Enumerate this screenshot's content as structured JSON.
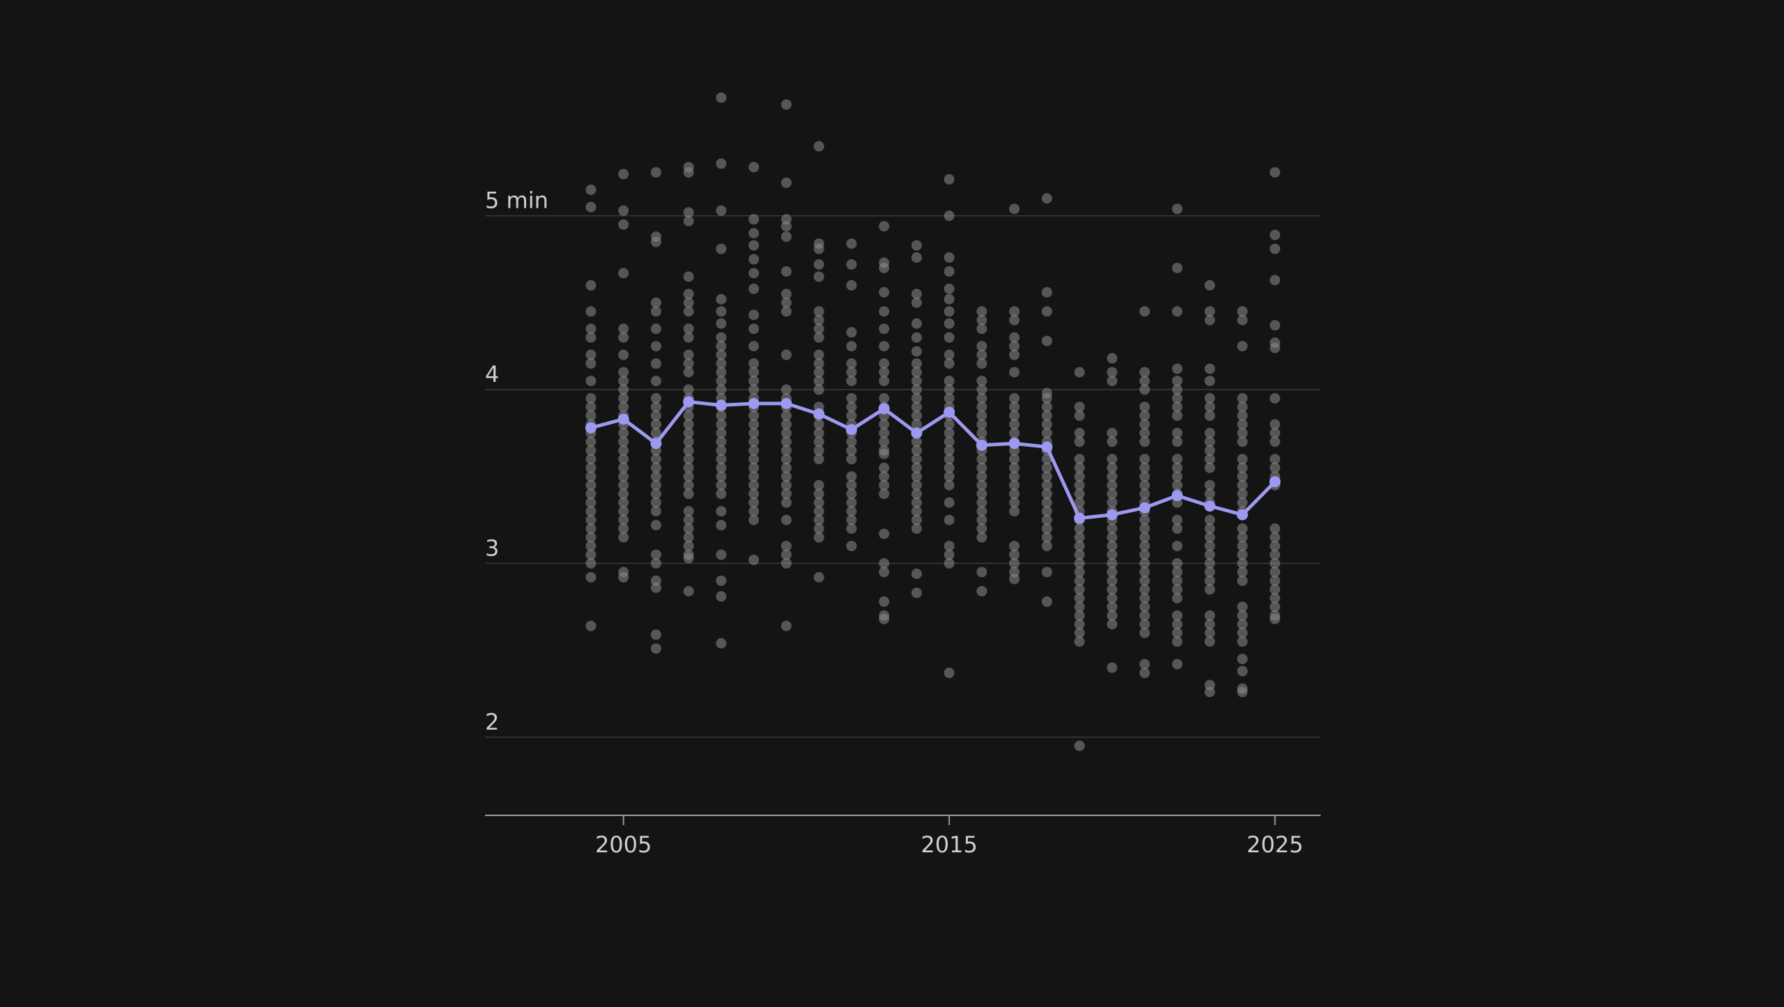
{
  "chart_data": {
    "type": "scatter",
    "title": "",
    "xlabel": "",
    "ylabel": "",
    "xlim": [
      2000.75,
      2026.4
    ],
    "ylim": [
      1.55,
      5.5
    ],
    "y_ticks": [
      {
        "value": 5,
        "label": "5 min"
      },
      {
        "value": 4,
        "label": "4"
      },
      {
        "value": 3,
        "label": "3"
      },
      {
        "value": 2,
        "label": "2"
      }
    ],
    "x_ticks": [
      {
        "value": 2005,
        "label": "2005"
      },
      {
        "value": 2015,
        "label": "2015"
      },
      {
        "value": 2025,
        "label": "2025"
      }
    ],
    "grid": true,
    "colors": {
      "background": "#141414",
      "points": "#8c8c8c",
      "average_line": "#9d99f0",
      "grid": "#3a3a3a",
      "axis": "#9a9a9a",
      "tick_text": "#cfcfcf"
    },
    "series": [
      {
        "values_by_year": [
          {
            "x": 2004,
            "y": [
              5.15,
              5.05,
              4.6,
              4.45,
              4.35,
              4.3,
              4.2,
              4.15,
              4.05,
              3.95,
              3.9,
              3.85,
              3.8,
              3.75,
              3.7,
              3.65,
              3.6,
              3.55,
              3.5,
              3.45,
              3.4,
              3.35,
              3.3,
              3.25,
              3.2,
              3.15,
              3.1,
              3.05,
              3.0,
              2.92,
              2.64
            ]
          },
          {
            "x": 2005,
            "y": [
              5.24,
              5.03,
              4.95,
              4.67,
              4.35,
              4.3,
              4.2,
              4.1,
              4.05,
              4.0,
              3.95,
              3.9,
              3.85,
              3.8,
              3.75,
              3.7,
              3.65,
              3.6,
              3.55,
              3.5,
              3.45,
              3.4,
              3.35,
              3.3,
              3.25,
              3.2,
              3.15,
              2.95,
              2.92
            ]
          },
          {
            "x": 2006,
            "y": [
              5.25,
              4.88,
              4.85,
              4.5,
              4.45,
              4.35,
              4.25,
              4.15,
              4.05,
              3.95,
              3.9,
              3.85,
              3.8,
              3.75,
              3.7,
              3.65,
              3.6,
              3.55,
              3.5,
              3.45,
              3.4,
              3.35,
              3.3,
              3.22,
              3.05,
              3.0,
              2.9,
              2.86,
              2.59,
              2.51
            ]
          },
          {
            "x": 2007,
            "y": [
              5.28,
              5.25,
              5.02,
              4.97,
              4.65,
              4.55,
              4.5,
              4.45,
              4.35,
              4.3,
              4.2,
              4.15,
              4.1,
              4.0,
              3.95,
              3.9,
              3.85,
              3.8,
              3.75,
              3.7,
              3.65,
              3.6,
              3.55,
              3.5,
              3.45,
              3.4,
              3.3,
              3.25,
              3.2,
              3.15,
              3.1,
              3.05,
              3.03,
              2.84
            ]
          },
          {
            "x": 2008,
            "y": [
              5.68,
              5.3,
              5.03,
              4.81,
              4.52,
              4.45,
              4.38,
              4.3,
              4.25,
              4.2,
              4.15,
              4.1,
              4.05,
              4.0,
              3.95,
              3.9,
              3.85,
              3.8,
              3.75,
              3.7,
              3.65,
              3.6,
              3.55,
              3.5,
              3.45,
              3.4,
              3.3,
              3.22,
              3.05,
              2.9,
              2.81,
              2.54
            ]
          },
          {
            "x": 2009,
            "y": [
              5.28,
              4.98,
              4.9,
              4.83,
              4.75,
              4.67,
              4.58,
              4.43,
              4.35,
              4.25,
              4.15,
              4.1,
              4.05,
              4.0,
              3.95,
              3.9,
              3.85,
              3.8,
              3.75,
              3.7,
              3.65,
              3.6,
              3.55,
              3.5,
              3.45,
              3.4,
              3.35,
              3.3,
              3.25,
              3.02
            ]
          },
          {
            "x": 2010,
            "y": [
              5.64,
              5.19,
              4.98,
              4.94,
              4.88,
              4.68,
              4.55,
              4.5,
              4.45,
              4.2,
              4.0,
              3.95,
              3.9,
              3.85,
              3.8,
              3.75,
              3.7,
              3.65,
              3.6,
              3.55,
              3.5,
              3.45,
              3.4,
              3.35,
              3.25,
              3.1,
              3.05,
              3.0,
              2.64
            ]
          },
          {
            "x": 2011,
            "y": [
              5.4,
              4.84,
              4.81,
              4.72,
              4.65,
              4.45,
              4.4,
              4.35,
              4.3,
              4.2,
              4.15,
              4.1,
              4.05,
              4.0,
              3.9,
              3.85,
              3.8,
              3.75,
              3.7,
              3.65,
              3.6,
              3.45,
              3.4,
              3.35,
              3.3,
              3.25,
              3.2,
              3.15,
              2.92
            ]
          },
          {
            "x": 2012,
            "y": [
              4.84,
              4.72,
              4.6,
              4.33,
              4.25,
              4.15,
              4.1,
              4.05,
              3.95,
              3.9,
              3.85,
              3.8,
              3.75,
              3.7,
              3.65,
              3.6,
              3.5,
              3.45,
              3.4,
              3.35,
              3.3,
              3.25,
              3.2,
              3.1
            ]
          },
          {
            "x": 2013,
            "y": [
              4.94,
              4.73,
              4.7,
              4.56,
              4.45,
              4.35,
              4.25,
              4.15,
              4.1,
              4.05,
              3.95,
              3.9,
              3.85,
              3.8,
              3.75,
              3.7,
              3.65,
              3.63,
              3.55,
              3.5,
              3.45,
              3.4,
              3.17,
              3.0,
              2.95,
              2.78,
              2.7,
              2.68
            ]
          },
          {
            "x": 2014,
            "y": [
              4.83,
              4.76,
              4.55,
              4.5,
              4.38,
              4.3,
              4.22,
              4.15,
              4.1,
              4.05,
              4.0,
              3.95,
              3.9,
              3.85,
              3.8,
              3.75,
              3.7,
              3.65,
              3.6,
              3.55,
              3.5,
              3.45,
              3.4,
              3.35,
              3.3,
              3.25,
              3.2,
              2.94,
              2.83
            ]
          },
          {
            "x": 2015,
            "y": [
              5.21,
              5.0,
              4.76,
              4.68,
              4.58,
              4.52,
              4.45,
              4.38,
              4.3,
              4.2,
              4.15,
              4.05,
              4.0,
              3.95,
              3.9,
              3.85,
              3.8,
              3.75,
              3.7,
              3.65,
              3.6,
              3.55,
              3.5,
              3.45,
              3.35,
              3.25,
              3.1,
              3.05,
              3.0,
              2.37
            ]
          },
          {
            "x": 2016,
            "y": [
              4.45,
              4.4,
              4.35,
              4.25,
              4.2,
              4.15,
              4.05,
              4.0,
              3.95,
              3.9,
              3.85,
              3.8,
              3.75,
              3.7,
              3.65,
              3.6,
              3.55,
              3.5,
              3.45,
              3.4,
              3.35,
              3.3,
              3.25,
              3.2,
              3.15,
              2.95,
              2.84
            ]
          },
          {
            "x": 2017,
            "y": [
              5.04,
              4.45,
              4.4,
              4.3,
              4.25,
              4.2,
              4.1,
              3.95,
              3.9,
              3.85,
              3.8,
              3.75,
              3.7,
              3.65,
              3.6,
              3.55,
              3.5,
              3.45,
              3.4,
              3.35,
              3.3,
              3.1,
              3.05,
              3.0,
              2.95,
              2.91
            ]
          },
          {
            "x": 2018,
            "y": [
              5.1,
              4.56,
              4.45,
              4.28,
              3.98,
              3.95,
              3.9,
              3.85,
              3.8,
              3.75,
              3.7,
              3.65,
              3.6,
              3.55,
              3.5,
              3.45,
              3.4,
              3.35,
              3.3,
              3.25,
              3.2,
              3.15,
              3.1,
              2.95,
              2.78
            ]
          },
          {
            "x": 2019,
            "y": [
              4.1,
              3.9,
              3.85,
              3.75,
              3.7,
              3.6,
              3.55,
              3.5,
              3.45,
              3.4,
              3.35,
              3.3,
              3.25,
              3.2,
              3.15,
              3.1,
              3.05,
              3.0,
              2.95,
              2.9,
              2.85,
              2.8,
              2.75,
              2.7,
              2.65,
              2.6,
              2.55,
              1.95
            ]
          },
          {
            "x": 2020,
            "y": [
              4.18,
              4.1,
              4.05,
              3.75,
              3.7,
              3.6,
              3.55,
              3.5,
              3.45,
              3.4,
              3.35,
              3.3,
              3.25,
              3.2,
              3.15,
              3.1,
              3.05,
              3.0,
              2.95,
              2.9,
              2.85,
              2.8,
              2.75,
              2.7,
              2.65,
              2.4
            ]
          },
          {
            "x": 2021,
            "y": [
              4.45,
              4.1,
              4.05,
              4.0,
              3.9,
              3.85,
              3.8,
              3.75,
              3.7,
              3.6,
              3.55,
              3.5,
              3.45,
              3.4,
              3.35,
              3.3,
              3.25,
              3.2,
              3.15,
              3.1,
              3.05,
              3.0,
              2.95,
              2.9,
              2.85,
              2.8,
              2.75,
              2.7,
              2.65,
              2.6,
              2.42,
              2.37
            ]
          },
          {
            "x": 2022,
            "y": [
              5.04,
              4.7,
              4.45,
              4.12,
              4.05,
              4.0,
              3.95,
              3.9,
              3.85,
              3.75,
              3.7,
              3.6,
              3.55,
              3.5,
              3.45,
              3.4,
              3.35,
              3.25,
              3.2,
              3.1,
              3.0,
              2.95,
              2.9,
              2.85,
              2.8,
              2.7,
              2.65,
              2.6,
              2.55,
              2.42
            ]
          },
          {
            "x": 2023,
            "y": [
              4.6,
              4.45,
              4.4,
              4.12,
              4.05,
              3.95,
              3.9,
              3.85,
              3.75,
              3.7,
              3.65,
              3.6,
              3.55,
              3.45,
              3.4,
              3.35,
              3.25,
              3.2,
              3.15,
              3.1,
              3.05,
              3.0,
              2.95,
              2.9,
              2.85,
              2.7,
              2.65,
              2.6,
              2.55,
              2.3,
              2.26
            ]
          },
          {
            "x": 2024,
            "y": [
              4.45,
              4.4,
              4.25,
              3.95,
              3.9,
              3.85,
              3.8,
              3.75,
              3.7,
              3.6,
              3.55,
              3.5,
              3.45,
              3.4,
              3.35,
              3.3,
              3.2,
              3.15,
              3.1,
              3.05,
              3.0,
              2.95,
              2.9,
              2.75,
              2.7,
              2.65,
              2.6,
              2.55,
              2.45,
              2.38,
              2.28,
              2.26
            ]
          },
          {
            "x": 2025,
            "y": [
              5.25,
              4.89,
              4.81,
              4.63,
              4.37,
              4.27,
              4.24,
              3.95,
              3.8,
              3.75,
              3.7,
              3.6,
              3.55,
              3.5,
              3.45,
              3.2,
              3.15,
              3.1,
              3.05,
              3.0,
              2.95,
              2.9,
              2.85,
              2.8,
              2.75,
              2.7,
              2.68
            ]
          }
        ]
      },
      {
        "x": [
          2004,
          2005,
          2006,
          2007,
          2008,
          2009,
          2010,
          2011,
          2012,
          2013,
          2014,
          2015,
          2016,
          2017,
          2018,
          2019,
          2020,
          2021,
          2022,
          2023,
          2024,
          2025
        ],
        "values": [
          3.78,
          3.83,
          3.69,
          3.93,
          3.91,
          3.92,
          3.92,
          3.86,
          3.77,
          3.89,
          3.75,
          3.87,
          3.68,
          3.69,
          3.67,
          3.26,
          3.28,
          3.32,
          3.39,
          3.33,
          3.28,
          3.47
        ]
      }
    ]
  }
}
